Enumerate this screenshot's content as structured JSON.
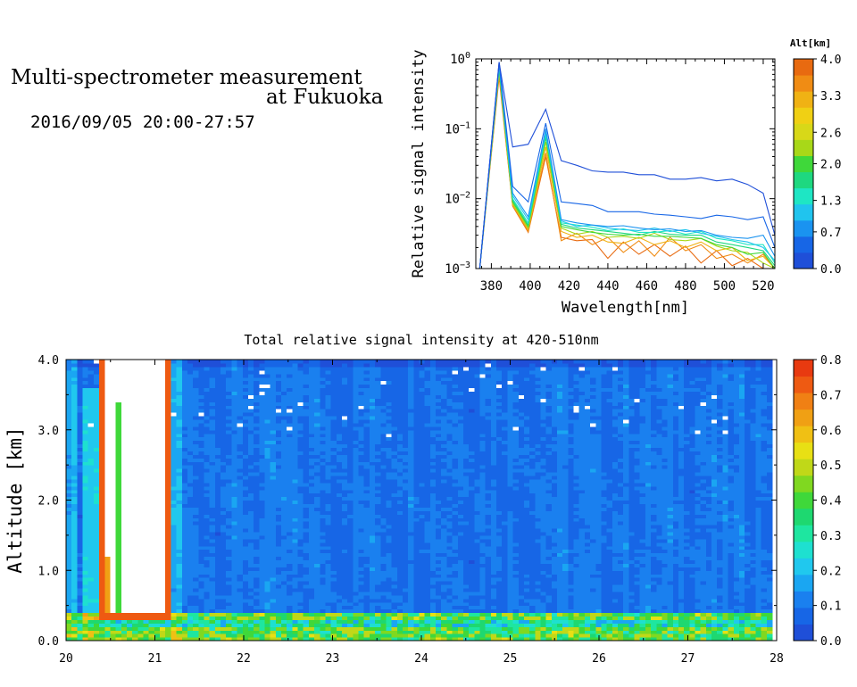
{
  "header": {
    "line1": "Multi-spectrometer measurement",
    "line2": "at Fukuoka",
    "line3": "2016/09/05 20:00-27:57"
  },
  "chart_data": [
    {
      "type": "line",
      "xlabel": "Wavelength[nm]",
      "ylabel": "Relative signal intensity",
      "xlim": [
        372,
        526
      ],
      "ylim": [
        0.001,
        1
      ],
      "yscale": "log",
      "xticks": [
        380,
        400,
        420,
        440,
        460,
        480,
        500,
        520
      ],
      "yticks": [
        {
          "value": 1,
          "base": "10",
          "exp": "0"
        },
        {
          "value": 0.1,
          "base": "10",
          "exp": "−1"
        },
        {
          "value": 0.01,
          "base": "10",
          "exp": "−2"
        },
        {
          "value": 0.001,
          "base": "10",
          "exp": "−3"
        }
      ],
      "x": [
        374,
        384,
        391,
        399,
        408,
        416,
        424,
        432,
        440,
        448,
        456,
        464,
        472,
        480,
        488,
        496,
        504,
        512,
        520,
        526
      ],
      "series": [
        {
          "altitude": 0.0,
          "color": "#1f4fd8",
          "values": [
            0.001,
            0.9,
            0.055,
            0.06,
            0.19,
            0.035,
            0.03,
            0.025,
            0.024,
            0.024,
            0.022,
            0.022,
            0.019,
            0.019,
            0.02,
            0.018,
            0.019,
            0.016,
            0.012,
            0.003
          ]
        },
        {
          "altitude": 0.3,
          "color": "#1766e6",
          "values": [
            0.001,
            0.9,
            0.015,
            0.009,
            0.12,
            0.009,
            0.0085,
            0.008,
            0.0065,
            0.0065,
            0.0065,
            0.006,
            0.0058,
            0.0055,
            0.0052,
            0.0058,
            0.0055,
            0.005,
            0.0055,
            0.002
          ]
        },
        {
          "altitude": 0.7,
          "color": "#1a93f0",
          "values": [
            0.001,
            0.85,
            0.012,
            0.0055,
            0.1,
            0.005,
            0.0045,
            0.0042,
            0.004,
            0.0041,
            0.0038,
            0.0036,
            0.0037,
            0.0034,
            0.0035,
            0.003,
            0.0028,
            0.0027,
            0.003,
            0.0015
          ]
        },
        {
          "altitude": 1.0,
          "color": "#20c4ee",
          "values": [
            0.001,
            0.8,
            0.011,
            0.005,
            0.09,
            0.0048,
            0.004,
            0.0042,
            0.0038,
            0.0036,
            0.0035,
            0.0038,
            0.0034,
            0.0036,
            0.0032,
            0.0029,
            0.0026,
            0.0024,
            0.002,
            0.0013
          ]
        },
        {
          "altitude": 1.3,
          "color": "#1ee6c4",
          "values": [
            0.001,
            0.8,
            0.01,
            0.0045,
            0.085,
            0.0045,
            0.0042,
            0.0039,
            0.0035,
            0.0037,
            0.0033,
            0.0033,
            0.0035,
            0.0031,
            0.0034,
            0.0027,
            0.0025,
            0.0022,
            0.0022,
            0.0012
          ]
        },
        {
          "altitude": 1.6,
          "color": "#1ed880",
          "values": [
            0.001,
            0.75,
            0.0095,
            0.0042,
            0.08,
            0.0043,
            0.0038,
            0.0036,
            0.0034,
            0.0032,
            0.003,
            0.0034,
            0.0031,
            0.003,
            0.003,
            0.0024,
            0.0022,
            0.002,
            0.0018,
            0.0011
          ]
        },
        {
          "altitude": 2.0,
          "color": "#3fd83a",
          "values": [
            0.001,
            0.7,
            0.009,
            0.004,
            0.075,
            0.004,
            0.0036,
            0.0033,
            0.0031,
            0.003,
            0.0031,
            0.0029,
            0.0029,
            0.0028,
            0.0027,
            0.0022,
            0.002,
            0.0016,
            0.0017,
            0.001
          ]
        },
        {
          "altitude": 2.6,
          "color": "#a8d818",
          "values": [
            0.001,
            0.7,
            0.0085,
            0.0038,
            0.065,
            0.0038,
            0.0031,
            0.0034,
            0.0028,
            0.0029,
            0.0027,
            0.0032,
            0.0026,
            0.0025,
            0.0027,
            0.0021,
            0.0018,
            0.0017,
            0.0012,
            0.001
          ]
        },
        {
          "altitude": 3.3,
          "color": "#f0b214",
          "values": [
            0.001,
            0.65,
            0.0082,
            0.0036,
            0.055,
            0.0034,
            0.0028,
            0.003,
            0.0024,
            0.0023,
            0.0028,
            0.0022,
            0.0025,
            0.002,
            0.0024,
            0.0018,
            0.002,
            0.0013,
            0.0015,
            0.001
          ]
        },
        {
          "altitude": 3.6,
          "color": "#f08c14",
          "values": [
            0.001,
            0.6,
            0.008,
            0.0034,
            0.045,
            0.0025,
            0.0032,
            0.0022,
            0.0028,
            0.0017,
            0.0025,
            0.0015,
            0.0028,
            0.0018,
            0.0022,
            0.0014,
            0.0016,
            0.0012,
            0.0016,
            0.001
          ]
        },
        {
          "altitude": 4.0,
          "color": "#e86a10",
          "values": [
            0.001,
            0.55,
            0.0078,
            0.0033,
            0.04,
            0.0028,
            0.0025,
            0.0026,
            0.0014,
            0.0024,
            0.0016,
            0.0022,
            0.0015,
            0.0021,
            0.0012,
            0.0018,
            0.0011,
            0.0014,
            0.001,
            0.001
          ]
        }
      ],
      "colorbar": {
        "title": "Alt[km]",
        "labels": [
          "0.0",
          "0.7",
          "1.3",
          "2.0",
          "2.6",
          "3.3",
          "4.0"
        ],
        "range": [
          0,
          4
        ],
        "colors": [
          "#1f4fd8",
          "#1766e6",
          "#1a93f0",
          "#20c4ee",
          "#1ee6c4",
          "#1ed880",
          "#3fd83a",
          "#a8d818",
          "#d8d818",
          "#f0d014",
          "#f0b214",
          "#f08c14",
          "#e86a10"
        ]
      }
    },
    {
      "type": "heatmap",
      "title": "Total relative signal intensity at 420-510nm",
      "ylabel": "Altitude [km]",
      "xlim": [
        20,
        28
      ],
      "ylim": [
        0,
        4
      ],
      "xticks": [
        20,
        21,
        22,
        23,
        24,
        25,
        26,
        27,
        28
      ],
      "yticks": [
        "0.0",
        "1.0",
        "2.0",
        "3.0",
        "4.0"
      ],
      "data_time_range": [
        20.0,
        27.95
      ],
      "features": {
        "background_level": 0.1,
        "surface_layer": {
          "altitude_range": [
            0.15,
            0.4
          ],
          "level": 0.4
        },
        "cloud": {
          "time_range": [
            20.4,
            21.15
          ],
          "altitude_range": [
            0.3,
            4.0
          ],
          "level": "saturated"
        }
      },
      "colorbar": {
        "labels": [
          "0.0",
          "0.1",
          "0.2",
          "0.3",
          "0.4",
          "0.5",
          "0.6",
          "0.7",
          "0.8"
        ],
        "range": [
          0,
          0.8
        ],
        "colors": [
          "#1f4fd8",
          "#1766e6",
          "#1a80ef",
          "#1aa6f2",
          "#20c8ee",
          "#1ee0d0",
          "#1ee6a0",
          "#1ed870",
          "#3fd83a",
          "#80d820",
          "#c0d818",
          "#e8e014",
          "#f0c014",
          "#f0a014",
          "#f08014",
          "#ee5a12",
          "#e83a10"
        ]
      }
    }
  ]
}
